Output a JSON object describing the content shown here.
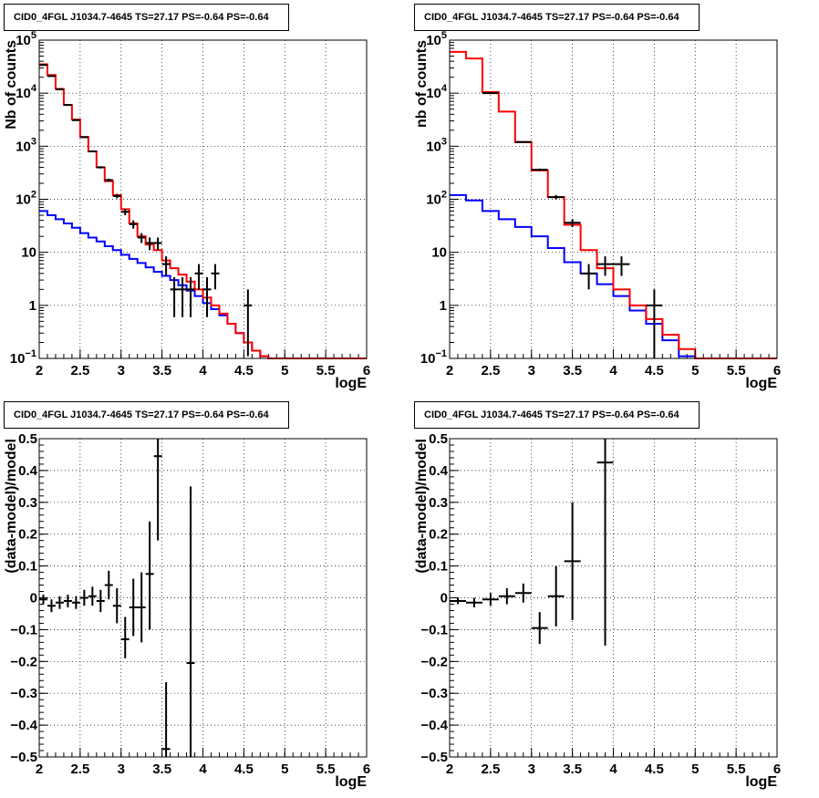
{
  "chart_data": [
    {
      "type": "line",
      "title": "CID0_4FGL J1034.7-4645 TS=27.17 PS=-0.64 PS=-0.64",
      "xlabel": "logE",
      "ylabel": "Nb of counts",
      "xlim": [
        2,
        6
      ],
      "ylim": [
        0.1,
        100000
      ],
      "yscale": "log",
      "grid": true,
      "xticks": [
        "2",
        "2.5",
        "3",
        "3.5",
        "4",
        "4.5",
        "5",
        "5.5",
        "6"
      ],
      "yticks": [
        {
          "v": 0.1,
          "base": "10",
          "exp": "−1"
        },
        {
          "v": 1,
          "label": "1"
        },
        {
          "v": 10,
          "label": "10"
        },
        {
          "v": 100,
          "base": "10",
          "exp": "2"
        },
        {
          "v": 1000,
          "base": "10",
          "exp": "3"
        },
        {
          "v": 10000,
          "base": "10",
          "exp": "4"
        },
        {
          "v": 100000,
          "base": "10",
          "exp": "5"
        }
      ],
      "bin_edges": [
        2,
        2.1,
        2.2,
        2.3,
        2.4,
        2.5,
        2.6,
        2.7,
        2.8,
        2.9,
        3.0,
        3.1,
        3.2,
        3.3,
        3.4,
        3.5,
        3.6,
        3.7,
        3.8,
        3.9,
        4.0,
        4.1,
        4.2,
        4.3,
        4.4,
        4.5,
        4.6,
        4.7,
        4.8,
        4.9,
        5.0,
        5.1,
        5.2,
        5.3,
        5.4,
        5.5,
        5.6,
        5.7,
        5.8,
        5.9,
        6.0
      ],
      "series": [
        {
          "color": "#0000ff",
          "style": "step",
          "values": [
            60,
            50,
            42,
            35,
            29,
            23,
            19,
            16,
            13,
            11,
            9,
            7.5,
            6.3,
            5.2,
            4.3,
            3.6,
            3,
            2.4,
            1.9,
            1.5,
            1.1,
            0.85,
            0.65,
            0.45,
            0.3,
            0.2,
            0.14,
            0.11,
            0.1,
            0.1,
            0.1,
            0.1,
            0.1,
            0.1,
            0.1,
            0.1,
            0.1,
            0.1,
            0.1,
            0.1
          ]
        },
        {
          "color": "#ff0000",
          "style": "step",
          "values": [
            35000,
            22000,
            12000,
            6000,
            3200,
            1500,
            800,
            400,
            220,
            120,
            65,
            35,
            20,
            14,
            11,
            7,
            5,
            3.8,
            2.8,
            2.0,
            1.4,
            1.0,
            0.7,
            0.45,
            0.3,
            0.2,
            0.14,
            0.11,
            0.1,
            0.1,
            0.1,
            0.1,
            0.1,
            0.1,
            0.1,
            0.1,
            0.1,
            0.1,
            0.1,
            0.1
          ]
        },
        {
          "color": "#000000",
          "style": "errorbar",
          "xerr": 0.05,
          "points": [
            {
              "x": 2.05,
              "y": 34000,
              "lo": 33800,
              "hi": 34200
            },
            {
              "x": 2.15,
              "y": 21000,
              "lo": 20800,
              "hi": 21200
            },
            {
              "x": 2.25,
              "y": 11800,
              "lo": 11700,
              "hi": 11900
            },
            {
              "x": 2.35,
              "y": 6000,
              "lo": 5900,
              "hi": 6100
            },
            {
              "x": 2.45,
              "y": 3100,
              "lo": 3050,
              "hi": 3150
            },
            {
              "x": 2.55,
              "y": 1480,
              "lo": 1440,
              "hi": 1520
            },
            {
              "x": 2.65,
              "y": 800,
              "lo": 772,
              "hi": 828
            },
            {
              "x": 2.75,
              "y": 400,
              "lo": 380,
              "hi": 420
            },
            {
              "x": 2.85,
              "y": 230,
              "lo": 215,
              "hi": 245
            },
            {
              "x": 2.95,
              "y": 115,
              "lo": 104,
              "hi": 126
            },
            {
              "x": 3.05,
              "y": 58,
              "lo": 50,
              "hi": 66
            },
            {
              "x": 3.15,
              "y": 34,
              "lo": 28,
              "hi": 40
            },
            {
              "x": 3.25,
              "y": 19,
              "lo": 15,
              "hi": 23
            },
            {
              "x": 3.35,
              "y": 15,
              "lo": 11,
              "hi": 19
            },
            {
              "x": 3.45,
              "y": 15,
              "lo": 11,
              "hi": 19
            },
            {
              "x": 3.55,
              "y": 6,
              "lo": 3.6,
              "hi": 8.4
            },
            {
              "x": 3.65,
              "y": 2,
              "lo": 0.6,
              "hi": 3.4
            },
            {
              "x": 3.75,
              "y": 2,
              "lo": 0.6,
              "hi": 3.4
            },
            {
              "x": 3.85,
              "y": 2,
              "lo": 0.6,
              "hi": 3.4
            },
            {
              "x": 3.95,
              "y": 4,
              "lo": 2,
              "hi": 6
            },
            {
              "x": 4.05,
              "y": 2,
              "lo": 0.6,
              "hi": 3.4
            },
            {
              "x": 4.15,
              "y": 4,
              "lo": 2,
              "hi": 6
            },
            {
              "x": 4.55,
              "y": 1,
              "lo": 0.11,
              "hi": 2
            }
          ]
        }
      ]
    },
    {
      "type": "line",
      "title": "CID0_4FGL J1034.7-4645 TS=27.17 PS=-0.64 PS=-0.64",
      "xlabel": "logE",
      "ylabel": "nb of counts",
      "xlim": [
        2,
        6
      ],
      "ylim": [
        0.1,
        100000
      ],
      "yscale": "log",
      "grid": true,
      "xticks": [
        "2",
        "2.5",
        "3",
        "3.5",
        "4",
        "4.5",
        "5",
        "5.5",
        "6"
      ],
      "yticks": [
        {
          "v": 0.1,
          "base": "10",
          "exp": "−1"
        },
        {
          "v": 1,
          "label": "1"
        },
        {
          "v": 10,
          "label": "10"
        },
        {
          "v": 100,
          "base": "10",
          "exp": "2"
        },
        {
          "v": 1000,
          "base": "10",
          "exp": "3"
        },
        {
          "v": 10000,
          "base": "10",
          "exp": "4"
        },
        {
          "v": 100000,
          "base": "10",
          "exp": "5"
        }
      ],
      "bin_edges": [
        2,
        2.2,
        2.4,
        2.6,
        2.8,
        3.0,
        3.2,
        3.4,
        3.6,
        3.8,
        4.0,
        4.2,
        4.4,
        4.6,
        4.8,
        5.0,
        5.2,
        5.4,
        5.6,
        5.8,
        6.0
      ],
      "series": [
        {
          "color": "#0000ff",
          "style": "step",
          "values": [
            120,
            95,
            60,
            42,
            30,
            20,
            12,
            6.5,
            4,
            2.5,
            1.5,
            0.8,
            0.45,
            0.22,
            0.11,
            0.1,
            0.1,
            0.1,
            0.1,
            0.1
          ]
        },
        {
          "color": "#ff0000",
          "style": "step",
          "values": [
            60000,
            45000,
            10500,
            4500,
            1200,
            350,
            110,
            33,
            11,
            5,
            2,
            1.0,
            0.55,
            0.28,
            0.15,
            0.1,
            0.1,
            0.1,
            0.1,
            0.1
          ]
        },
        {
          "color": "#000000",
          "style": "errorbar",
          "xerr": 0.1,
          "points": [
            {
              "x": 2.5,
              "y": 10000,
              "lo": 9900,
              "hi": 10100
            },
            {
              "x": 2.9,
              "y": 1200,
              "lo": 1165,
              "hi": 1235
            },
            {
              "x": 3.1,
              "y": 360,
              "lo": 340,
              "hi": 380
            },
            {
              "x": 3.3,
              "y": 110,
              "lo": 100,
              "hi": 120
            },
            {
              "x": 3.5,
              "y": 36,
              "lo": 30,
              "hi": 42
            },
            {
              "x": 3.7,
              "y": 4,
              "lo": 2,
              "hi": 6
            },
            {
              "x": 3.9,
              "y": 6,
              "lo": 3.6,
              "hi": 8.4
            },
            {
              "x": 4.1,
              "y": 6,
              "lo": 3.6,
              "hi": 8.4
            },
            {
              "x": 4.5,
              "y": 1,
              "lo": 0.1,
              "hi": 2
            }
          ]
        }
      ]
    },
    {
      "type": "scatter",
      "title": "CID0_4FGL J1034.7-4645 TS=27.17 PS=-0.64 PS=-0.64",
      "xlabel": "logE",
      "ylabel": "(data-model)/model",
      "xlim": [
        2,
        6
      ],
      "ylim": [
        -0.5,
        0.5
      ],
      "grid": true,
      "xticks": [
        "2",
        "2.5",
        "3",
        "3.5",
        "4",
        "4.5",
        "5",
        "5.5",
        "6"
      ],
      "yticks": [
        "−0.5",
        "−0.4",
        "−0.3",
        "−0.2",
        "−0.1",
        "0",
        "0.1",
        "0.2",
        "0.3",
        "0.4",
        "0.5"
      ],
      "series": [
        {
          "color": "#000000",
          "style": "errorbar",
          "xerr": 0.05,
          "points": [
            {
              "x": 2.05,
              "y": -0.005,
              "lo": -0.02,
              "hi": 0.01
            },
            {
              "x": 2.15,
              "y": -0.025,
              "lo": -0.045,
              "hi": -0.005
            },
            {
              "x": 2.25,
              "y": -0.015,
              "lo": -0.035,
              "hi": 0.005
            },
            {
              "x": 2.35,
              "y": -0.01,
              "lo": -0.03,
              "hi": 0.01
            },
            {
              "x": 2.45,
              "y": -0.015,
              "lo": -0.035,
              "hi": 0.005
            },
            {
              "x": 2.55,
              "y": 0.0,
              "lo": -0.025,
              "hi": 0.025
            },
            {
              "x": 2.65,
              "y": 0.005,
              "lo": -0.025,
              "hi": 0.035
            },
            {
              "x": 2.75,
              "y": -0.01,
              "lo": -0.045,
              "hi": 0.025
            },
            {
              "x": 2.85,
              "y": 0.04,
              "lo": -0.005,
              "hi": 0.085
            },
            {
              "x": 2.95,
              "y": -0.025,
              "lo": -0.08,
              "hi": 0.03
            },
            {
              "x": 3.05,
              "y": -0.13,
              "lo": -0.19,
              "hi": -0.06
            },
            {
              "x": 3.15,
              "y": -0.03,
              "lo": -0.12,
              "hi": 0.06
            },
            {
              "x": 3.25,
              "y": -0.03,
              "lo": -0.14,
              "hi": 0.08
            },
            {
              "x": 3.35,
              "y": 0.075,
              "lo": -0.1,
              "hi": 0.24
            },
            {
              "x": 3.45,
              "y": 0.445,
              "lo": 0.18,
              "hi": 0.5
            },
            {
              "x": 3.55,
              "y": -0.475,
              "lo": -0.5,
              "hi": -0.265
            },
            {
              "x": 3.85,
              "y": -0.205,
              "lo": -0.5,
              "hi": 0.35
            }
          ]
        }
      ]
    },
    {
      "type": "scatter",
      "title": "CID0_4FGL J1034.7-4645 TS=27.17 PS=-0.64 PS=-0.64",
      "xlabel": "logE",
      "ylabel": "(data-model)/model",
      "xlim": [
        2,
        6
      ],
      "ylim": [
        -0.5,
        0.5
      ],
      "grid": true,
      "xticks": [
        "2",
        "2.5",
        "3",
        "3.5",
        "4",
        "4.5",
        "5",
        "5.5",
        "6"
      ],
      "yticks": [
        "−0.5",
        "−0.4",
        "−0.3",
        "−0.2",
        "−0.1",
        "0",
        "0.1",
        "0.2",
        "0.3",
        "0.4",
        "0.5"
      ],
      "series": [
        {
          "color": "#000000",
          "style": "errorbar",
          "xerr": 0.1,
          "points": [
            {
              "x": 2.1,
              "y": -0.01,
              "lo": -0.02,
              "hi": 0.0
            },
            {
              "x": 2.3,
              "y": -0.015,
              "lo": -0.03,
              "hi": 0.0
            },
            {
              "x": 2.5,
              "y": -0.005,
              "lo": -0.025,
              "hi": 0.015
            },
            {
              "x": 2.7,
              "y": 0.005,
              "lo": -0.02,
              "hi": 0.03
            },
            {
              "x": 2.9,
              "y": 0.015,
              "lo": -0.015,
              "hi": 0.045
            },
            {
              "x": 3.1,
              "y": -0.095,
              "lo": -0.145,
              "hi": -0.045
            },
            {
              "x": 3.3,
              "y": 0.005,
              "lo": -0.09,
              "hi": 0.1
            },
            {
              "x": 3.5,
              "y": 0.115,
              "lo": -0.07,
              "hi": 0.3
            },
            {
              "x": 3.9,
              "y": 0.425,
              "lo": -0.15,
              "hi": 0.5
            }
          ]
        }
      ]
    }
  ]
}
